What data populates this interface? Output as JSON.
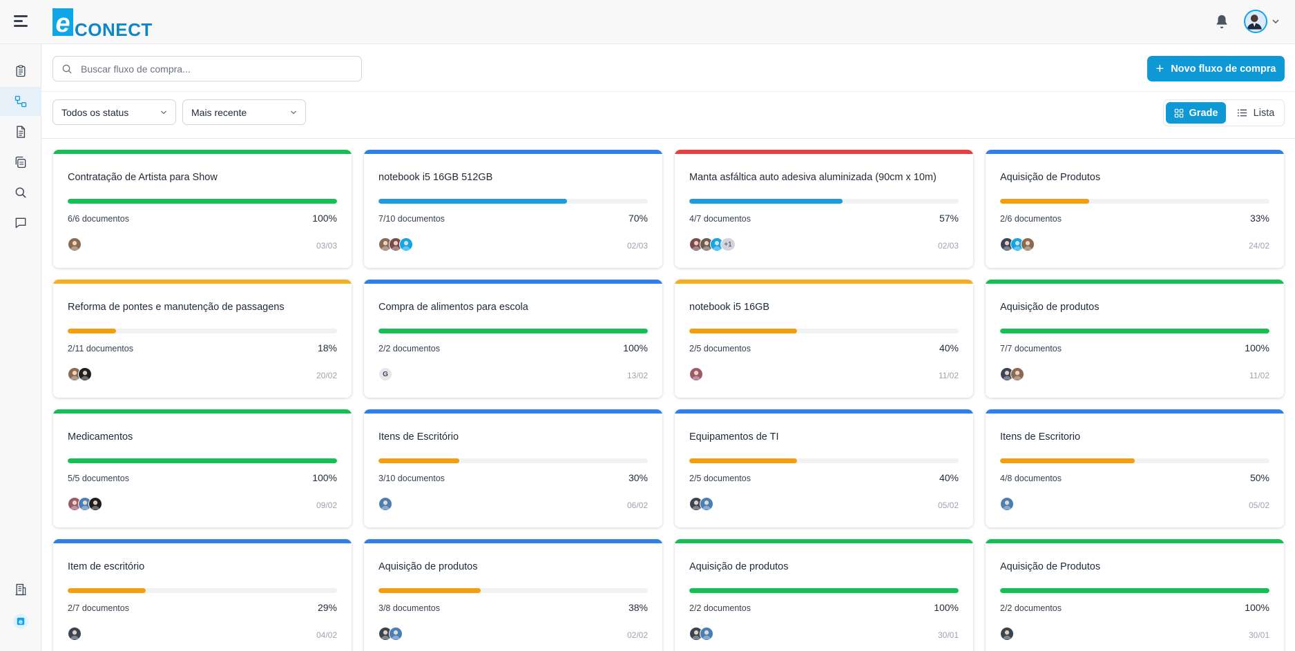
{
  "header": {
    "logo_letter": "e",
    "logo_text": "CONECT"
  },
  "toolbar": {
    "search_placeholder": "Buscar fluxo de compra...",
    "new_button_label": "Novo fluxo de compra",
    "status_filter": "Todos os status",
    "sort_filter": "Mais recente",
    "view_grid_label": "Grade",
    "view_list_label": "Lista"
  },
  "colors": {
    "accent": "#0e99d6",
    "green": "#12c054",
    "blue": "#2f80ed",
    "red": "#ef3b3b",
    "orange": "#f59e0b",
    "yellow": "#f2b01e",
    "progress_blue": "#1b9be0"
  },
  "cards": [
    {
      "title": "Contratação de Artista para Show",
      "top": "green",
      "bar": "green",
      "progress": 1.0,
      "docs": "6/6 documentos",
      "pct": "100%",
      "date": "03/03",
      "avatars": [
        "#8a6a52"
      ]
    },
    {
      "title": "notebook i5 16GB 512GB",
      "top": "blue",
      "bar": "progress_blue",
      "progress": 0.7,
      "docs": "7/10 documentos",
      "pct": "70%",
      "date": "02/03",
      "avatars": [
        "#8a6a52",
        "#7a4b4b",
        "#0ea5e9"
      ]
    },
    {
      "title": "Manta asfáltica auto adesiva aluminizada (90cm x 10m)",
      "top": "red",
      "bar": "progress_blue",
      "progress": 0.57,
      "docs": "4/7 documentos",
      "pct": "57%",
      "date": "02/03",
      "avatars": [
        "#7a4b4b",
        "#6b5b52",
        "#0ea5e9"
      ],
      "more": "+1"
    },
    {
      "title": "Aquisição de Produtos",
      "top": "blue",
      "bar": "orange",
      "progress": 0.33,
      "docs": "2/6 documentos",
      "pct": "33%",
      "date": "24/02",
      "avatars": [
        "#3a4452",
        "#0ea5e9",
        "#8a6a52"
      ]
    },
    {
      "title": "Reforma de pontes e manutenção de passagens",
      "top": "yellow",
      "bar": "orange",
      "progress": 0.18,
      "docs": "2/11 documentos",
      "pct": "18%",
      "date": "20/02",
      "avatars": [
        "#8a6a52",
        "#1f1f1f"
      ]
    },
    {
      "title": "Compra de alimentos para escola",
      "top": "blue",
      "bar": "green",
      "progress": 1.0,
      "docs": "2/2 documentos",
      "pct": "100%",
      "date": "13/02",
      "avatars": [],
      "letter": "G"
    },
    {
      "title": "notebook i5 16GB",
      "top": "yellow",
      "bar": "orange",
      "progress": 0.4,
      "docs": "2/5 documentos",
      "pct": "40%",
      "date": "11/02",
      "avatars": [
        "#9b5a6a"
      ]
    },
    {
      "title": "Aquisição de produtos",
      "top": "green",
      "bar": "green",
      "progress": 1.0,
      "docs": "7/7 documentos",
      "pct": "100%",
      "date": "11/02",
      "avatars": [
        "#3a4452",
        "#8a6a52"
      ]
    },
    {
      "title": "Medicamentos",
      "top": "green",
      "bar": "green",
      "progress": 1.0,
      "docs": "5/5 documentos",
      "pct": "100%",
      "date": "09/02",
      "avatars": [
        "#9b5a6a",
        "#4a7fb5",
        "#1f1f1f"
      ]
    },
    {
      "title": "Itens de Escritório",
      "top": "blue",
      "bar": "orange",
      "progress": 0.3,
      "docs": "3/10 documentos",
      "pct": "30%",
      "date": "06/02",
      "avatars": [
        "#4a7fb5"
      ]
    },
    {
      "title": "Equipamentos de TI",
      "top": "blue",
      "bar": "orange",
      "progress": 0.4,
      "docs": "2/5 documentos",
      "pct": "40%",
      "date": "05/02",
      "avatars": [
        "#3a4452",
        "#4a7fb5"
      ]
    },
    {
      "title": "Itens de Escritorio",
      "top": "blue",
      "bar": "orange",
      "progress": 0.5,
      "docs": "4/8 documentos",
      "pct": "50%",
      "date": "05/02",
      "avatars": [
        "#4a7fb5"
      ]
    },
    {
      "title": "Item de escritório",
      "top": "blue",
      "bar": "orange",
      "progress": 0.29,
      "docs": "2/7 documentos",
      "pct": "29%",
      "date": "04/02",
      "avatars": [
        "#3a4452"
      ]
    },
    {
      "title": "Aquisição de produtos",
      "top": "blue",
      "bar": "orange",
      "progress": 0.38,
      "docs": "3/8 documentos",
      "pct": "38%",
      "date": "02/02",
      "avatars": [
        "#3a4452",
        "#4a7fb5"
      ]
    },
    {
      "title": "Aquisição de produtos",
      "top": "green",
      "bar": "green",
      "progress": 1.0,
      "docs": "2/2 documentos",
      "pct": "100%",
      "date": "30/01",
      "avatars": [
        "#3a4452",
        "#4a7fb5"
      ]
    },
    {
      "title": "Aquisição de Produtos",
      "top": "green",
      "bar": "green",
      "progress": 1.0,
      "docs": "2/2 documentos",
      "pct": "100%",
      "date": "30/01",
      "avatars": [
        "#3a4452"
      ]
    }
  ]
}
